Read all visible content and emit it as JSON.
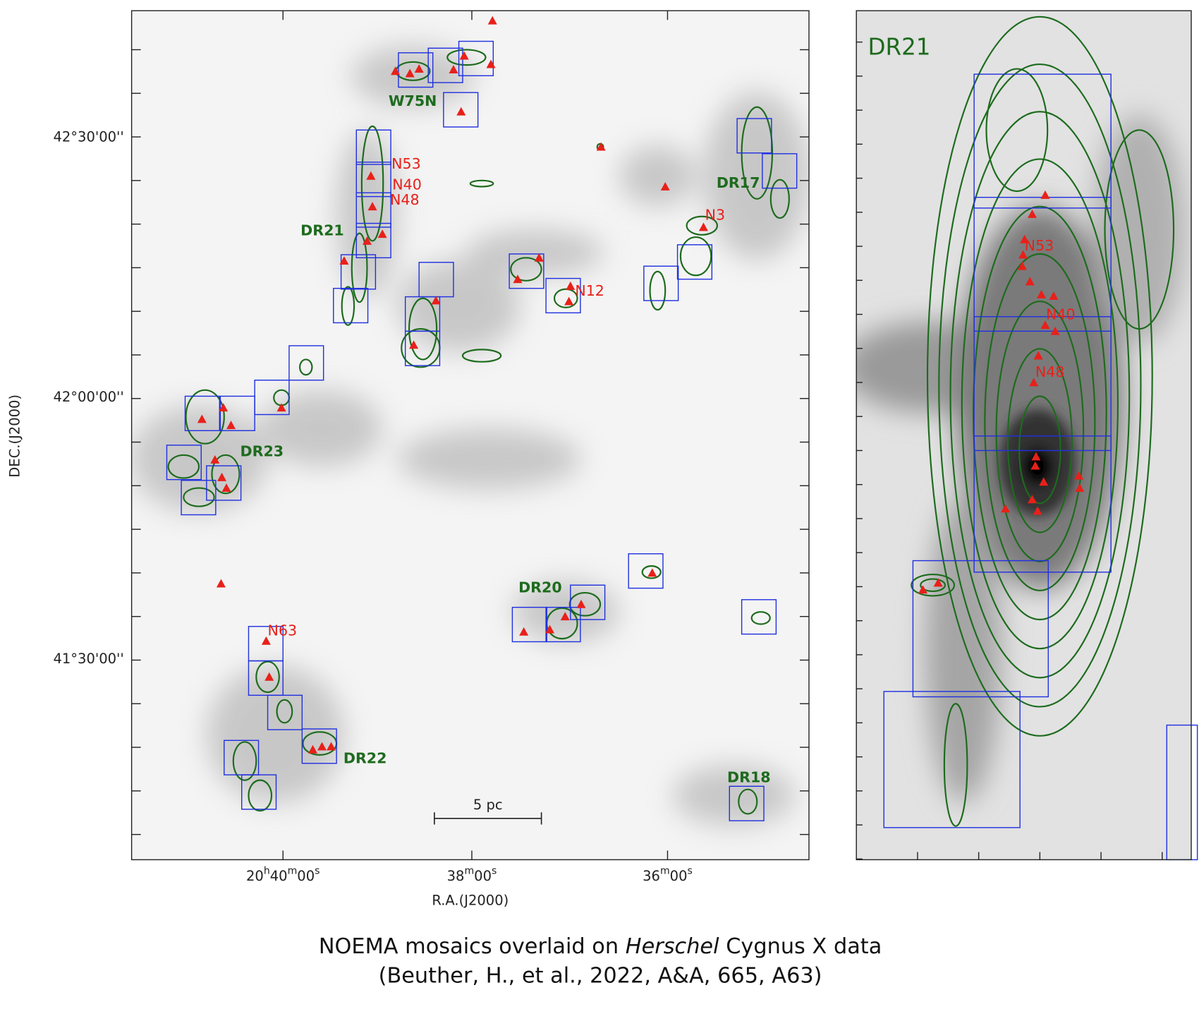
{
  "dec_axis": {
    "title": "DEC.(J2000)",
    "ticks": [
      "42°30'00''",
      "42°00'00''",
      "41°30'00''"
    ]
  },
  "ra_axis": {
    "title": "R.A.(J2000)",
    "ticks": [
      [
        "20",
        "h",
        "40",
        "m",
        "00",
        "s"
      ],
      [
        "38",
        "m",
        "00",
        "s"
      ],
      [
        "36",
        "m",
        "00",
        "s"
      ]
    ]
  },
  "left_panel": {
    "regions": [
      "W75N",
      "DR21",
      "DR17",
      "DR23",
      "DR20",
      "DR22",
      "DR18"
    ],
    "sources": [
      "N53",
      "N40",
      "N48",
      "N3",
      "N12",
      "N63"
    ],
    "scale_bar": "5 pc"
  },
  "right_panel": {
    "title": "DR21",
    "sources": [
      "N53",
      "N40",
      "N48"
    ]
  },
  "caption": {
    "line1": [
      "NOEMA mosaics overlaid on ",
      "Herschel",
      " Cygnus X data"
    ],
    "line2": "(Beuther, H., et al., 2022, A&A, 665, A63)"
  }
}
